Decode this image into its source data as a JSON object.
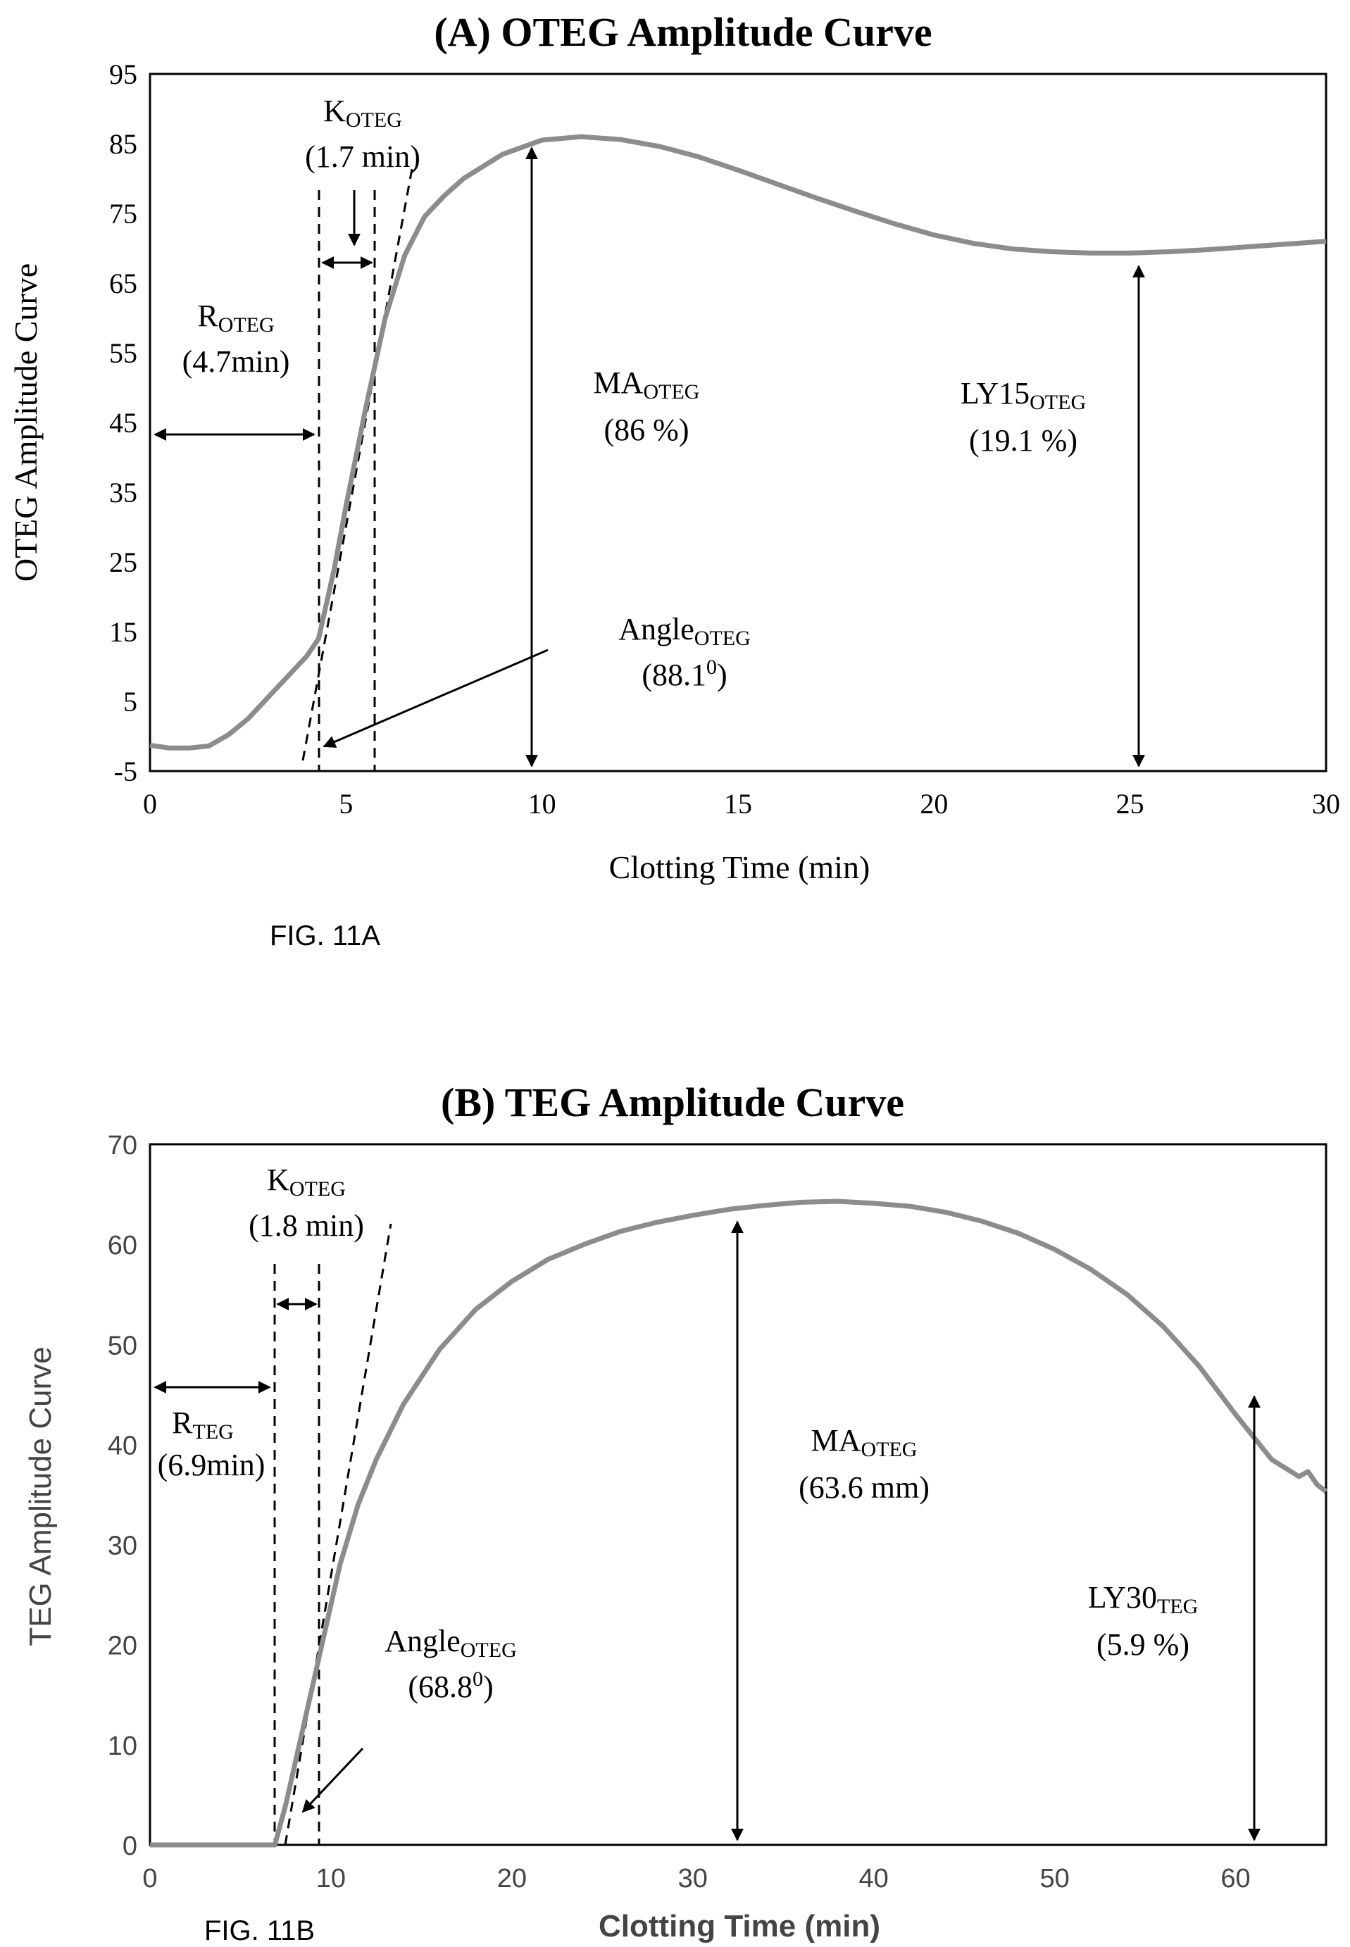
{
  "chart_data": [
    {
      "type": "line",
      "title": "(A) OTEG Amplitude Curve",
      "xlabel": "Clotting Time (min)",
      "ylabel": "OTEG Amplitude Curve",
      "xlim": [
        0,
        30
      ],
      "ylim": [
        -5,
        95
      ],
      "xticks": [
        "0",
        "5",
        "10",
        "15",
        "20",
        "25",
        "30"
      ],
      "yticks": [
        "-5",
        "5",
        "15",
        "25",
        "35",
        "45",
        "55",
        "65",
        "75",
        "85",
        "95"
      ],
      "grid": false,
      "legend": "none",
      "series": [
        {
          "color": "#8c8c8c",
          "x": [
            0,
            0.5,
            1,
            1.5,
            2,
            2.5,
            3,
            3.5,
            4,
            4.3,
            4.7,
            5,
            5.5,
            6,
            6.5,
            7,
            7.5,
            8,
            9,
            10,
            11,
            12,
            13,
            14,
            15,
            16,
            17,
            18,
            19,
            20,
            21,
            22,
            23,
            24,
            25,
            26,
            27,
            28,
            29,
            30
          ],
          "y": [
            -1.3,
            -1.7,
            -1.7,
            -1.4,
            0.2,
            2.5,
            5.5,
            8.5,
            11.5,
            14,
            24,
            33,
            47,
            60,
            69,
            74.5,
            77.5,
            80,
            83.5,
            85.5,
            86,
            85.6,
            84.6,
            83.1,
            81.2,
            79.2,
            77.2,
            75.3,
            73.5,
            71.9,
            70.7,
            69.9,
            69.5,
            69.3,
            69.3,
            69.5,
            69.8,
            70.2,
            70.6,
            71
          ]
        }
      ]
    },
    {
      "type": "line",
      "title": "(B) TEG Amplitude Curve",
      "xlabel": "Clotting Time (min)",
      "ylabel": "TEG Amplitude Curve",
      "xlim": [
        0,
        65
      ],
      "ylim": [
        0,
        70
      ],
      "xticks": [
        "0",
        "10",
        "20",
        "30",
        "40",
        "50",
        "60"
      ],
      "yticks": [
        "0",
        "10",
        "20",
        "30",
        "40",
        "50",
        "60",
        "70"
      ],
      "grid": false,
      "legend": "none",
      "series": [
        {
          "color": "#8c8c8c",
          "x": [
            0,
            6.9,
            7.5,
            8.5,
            9.5,
            10.5,
            11.5,
            12.5,
            14,
            16,
            18,
            20,
            22,
            24,
            26,
            28,
            30,
            32,
            34,
            36,
            38,
            40,
            42,
            44,
            46,
            48,
            50,
            52,
            54,
            56,
            58,
            60,
            62,
            63.5,
            64,
            64.5,
            65
          ],
          "y": [
            0,
            0,
            4,
            12,
            20,
            28,
            34,
            38.5,
            44,
            49.5,
            53.5,
            56.3,
            58.5,
            60,
            61.3,
            62.2,
            62.9,
            63.5,
            63.9,
            64.2,
            64.3,
            64.1,
            63.8,
            63.2,
            62.3,
            61.1,
            59.5,
            57.5,
            55,
            51.8,
            47.8,
            43,
            38.5,
            36.8,
            37.3,
            36,
            35.3
          ]
        }
      ]
    }
  ],
  "annotations_a": {
    "k_name": "K",
    "k_sub": "OTEG",
    "k_value": "(1.7 min)",
    "r_name": "R",
    "r_sub": "OTEG",
    "r_value": "(4.7min)",
    "ma_name": "MA",
    "ma_sub": "OTEG",
    "ma_value": "(86 %)",
    "ly_name": "LY15",
    "ly_sub": "OTEG",
    "ly_value": "(19.1 %)",
    "angle_name": "Angle",
    "angle_sub": "OTEG",
    "angle_value": "(88.1",
    "angle_sup": "0",
    "angle_close": ")"
  },
  "annotations_b": {
    "k_name": "K",
    "k_sub": "OTEG",
    "k_value": "(1.8 min)",
    "r_name": "R",
    "r_sub": "TEG",
    "r_value": "(6.9min)",
    "ma_name": "MA",
    "ma_sub": "OTEG",
    "ma_value": "(63.6 mm)",
    "ly_name": "LY30",
    "ly_sub": "TEG",
    "ly_value": "(5.9 %)",
    "angle_name": "Angle",
    "angle_sub": "OTEG",
    "angle_value": "(68.8",
    "angle_sup": "0",
    "angle_close": ")"
  },
  "figure_labels": {
    "a": "FIG. 11A",
    "b": "FIG. 11B"
  }
}
